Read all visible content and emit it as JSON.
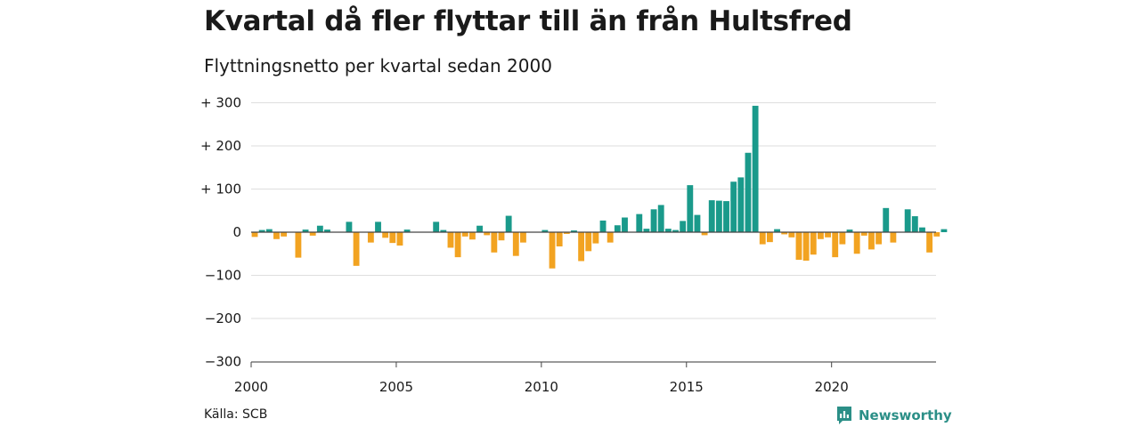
{
  "chart_data": {
    "type": "bar",
    "title": "Kvartal då fler flyttar till än från Hultsfred",
    "subtitle": "Flyttningsnetto per kvartal sedan 2000",
    "source": "Källa: SCB",
    "brand": "Newsworthy",
    "x_start": 2000,
    "quarters_per_year": 4,
    "xlim": [
      2000,
      2023.6
    ],
    "ylim": [
      -310,
      310
    ],
    "x_ticks": [
      2000,
      2005,
      2010,
      2015,
      2020
    ],
    "x_tick_labels": [
      "2000",
      "2005",
      "2010",
      "2015",
      "2020"
    ],
    "y_ticks": [
      300,
      200,
      100,
      0,
      -100,
      -200,
      -300
    ],
    "y_tick_labels": [
      "+ 300",
      "+ 200",
      "+ 100",
      "0",
      "−100",
      "−200",
      "−300"
    ],
    "grid": true,
    "colors": {
      "positive": "#1a9a8b",
      "negative": "#f2a321",
      "grid": "#dedede",
      "axis": "#444444"
    },
    "values": [
      -11,
      5,
      7,
      -16,
      -10,
      0,
      -59,
      6,
      -8,
      15,
      6,
      0,
      0,
      24,
      -78,
      0,
      -24,
      24,
      -13,
      -25,
      -31,
      6,
      0,
      0,
      0,
      24,
      5,
      -36,
      -58,
      -10,
      -17,
      15,
      -7,
      -47,
      -19,
      38,
      -55,
      -24,
      0,
      0,
      5,
      -84,
      -33,
      -4,
      4,
      -67,
      -44,
      -26,
      27,
      -24,
      16,
      34,
      0,
      42,
      8,
      53,
      63,
      8,
      5,
      26,
      109,
      40,
      -7,
      74,
      73,
      72,
      117,
      127,
      184,
      293,
      -28,
      -23,
      7,
      -5,
      -12,
      -64,
      -66,
      -52,
      -16,
      -12,
      -58,
      -28,
      6,
      -50,
      -8,
      -40,
      -28,
      56,
      -24,
      0,
      53,
      37,
      11,
      -47,
      -10,
      7
    ]
  }
}
